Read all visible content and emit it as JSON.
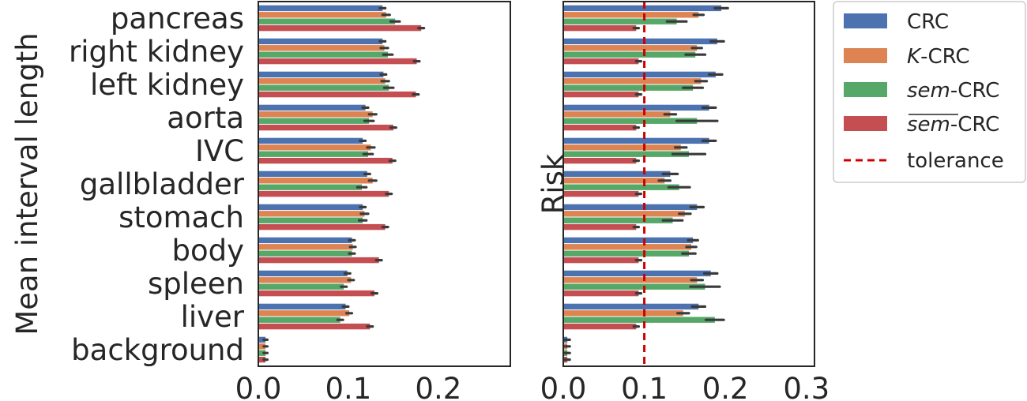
{
  "chart_data": [
    {
      "type": "bar",
      "orientation": "horizontal",
      "ylabel": "Mean interval length",
      "xlabel": "",
      "xlim": [
        0,
        0.28
      ],
      "xticks": [
        "0.0",
        "0.1",
        "0.2"
      ],
      "tick_values": [
        0,
        0.1,
        0.2
      ],
      "categories": [
        "pancreas",
        "right kidney",
        "left kidney",
        "aorta",
        "IVC",
        "gallbladder",
        "stomach",
        "body",
        "spleen",
        "liver",
        "background"
      ],
      "series": [
        {
          "name": "CRC",
          "values": [
            0.138,
            0.138,
            0.139,
            0.119,
            0.116,
            0.121,
            0.116,
            0.104,
            0.099,
            0.097,
            0.008
          ],
          "errors": [
            0.003,
            0.003,
            0.003,
            0.003,
            0.003,
            0.003,
            0.003,
            0.003,
            0.003,
            0.003,
            0.002
          ]
        },
        {
          "name": "K-CRC",
          "values": [
            0.142,
            0.14,
            0.141,
            0.127,
            0.125,
            0.127,
            0.118,
            0.105,
            0.103,
            0.101,
            0.008
          ],
          "errors": [
            0.004,
            0.004,
            0.004,
            0.004,
            0.004,
            0.004,
            0.004,
            0.003,
            0.003,
            0.003,
            0.002
          ]
        },
        {
          "name": "sem-CRC",
          "values": [
            0.152,
            0.144,
            0.145,
            0.123,
            0.122,
            0.115,
            0.116,
            0.104,
            0.095,
            0.091,
            0.008
          ],
          "errors": [
            0.005,
            0.005,
            0.005,
            0.005,
            0.005,
            0.005,
            0.004,
            0.003,
            0.003,
            0.003,
            0.002
          ]
        },
        {
          "name": "sem-bar-CRC",
          "values": [
            0.181,
            0.176,
            0.175,
            0.15,
            0.149,
            0.145,
            0.141,
            0.134,
            0.129,
            0.124,
            0.008
          ],
          "errors": [
            0.003,
            0.003,
            0.003,
            0.003,
            0.003,
            0.003,
            0.003,
            0.003,
            0.003,
            0.003,
            0.002
          ]
        }
      ]
    },
    {
      "type": "bar",
      "orientation": "horizontal",
      "ylabel": "Risk",
      "xlabel": "",
      "xlim": [
        0,
        0.31
      ],
      "xticks": [
        "0.0",
        "0.1",
        "0.2",
        "0.3"
      ],
      "tick_values": [
        0,
        0.1,
        0.2,
        0.3
      ],
      "tolerance": 0.1,
      "categories": [
        "pancreas",
        "right kidney",
        "left kidney",
        "aorta",
        "IVC",
        "gallbladder",
        "stomach",
        "body",
        "spleen",
        "liver",
        "background"
      ],
      "series": [
        {
          "name": "CRC",
          "values": [
            0.195,
            0.19,
            0.188,
            0.18,
            0.18,
            0.132,
            0.165,
            0.16,
            0.182,
            0.167,
            0.005
          ],
          "errors": [
            0.008,
            0.008,
            0.008,
            0.008,
            0.008,
            0.009,
            0.008,
            0.006,
            0.008,
            0.008,
            0.003
          ]
        },
        {
          "name": "K-CRC",
          "values": [
            0.167,
            0.165,
            0.17,
            0.132,
            0.145,
            0.125,
            0.15,
            0.158,
            0.165,
            0.148,
            0.005
          ],
          "errors": [
            0.006,
            0.006,
            0.007,
            0.007,
            0.007,
            0.007,
            0.007,
            0.006,
            0.007,
            0.007,
            0.003
          ]
        },
        {
          "name": "sem-CRC",
          "values": [
            0.14,
            0.163,
            0.16,
            0.165,
            0.155,
            0.143,
            0.135,
            0.155,
            0.175,
            0.187,
            0.005
          ],
          "errors": [
            0.012,
            0.012,
            0.012,
            0.025,
            0.02,
            0.013,
            0.012,
            0.008,
            0.018,
            0.011,
            0.003
          ]
        },
        {
          "name": "sem-bar-CRC",
          "values": [
            0.09,
            0.093,
            0.093,
            0.09,
            0.09,
            0.093,
            0.09,
            0.093,
            0.093,
            0.09,
            0.005
          ],
          "errors": [
            0.003,
            0.003,
            0.003,
            0.003,
            0.003,
            0.003,
            0.003,
            0.003,
            0.003,
            0.003,
            0.003
          ]
        }
      ]
    }
  ],
  "legend": {
    "placement": "outside-right",
    "items": [
      {
        "key": "crc",
        "type": "patch",
        "color": "#4c72b0"
      },
      {
        "key": "kcrc",
        "type": "patch",
        "color": "#dd8452"
      },
      {
        "key": "semcrc",
        "type": "patch",
        "color": "#55a868"
      },
      {
        "key": "sembarcrc",
        "type": "patch",
        "color": "#c44e52"
      },
      {
        "key": "tolerance",
        "type": "dashed-line",
        "color": "#cc0000"
      }
    ],
    "labels": {
      "crc": "CRC",
      "k_italic": "K",
      "k_suffix": "-CRC",
      "sem_italic": "sem",
      "sem_suffix": "-CRC",
      "sembar_italic": "sem",
      "sembar_suffix": "-CRC",
      "tolerance": "tolerance"
    }
  },
  "colors": {
    "CRC": "#4c72b0",
    "K-CRC": "#dd8452",
    "sem-CRC": "#55a868",
    "sem-bar-CRC": "#c44e52",
    "tolerance": "#cc0000",
    "errorbar": "#3a3a3a"
  }
}
